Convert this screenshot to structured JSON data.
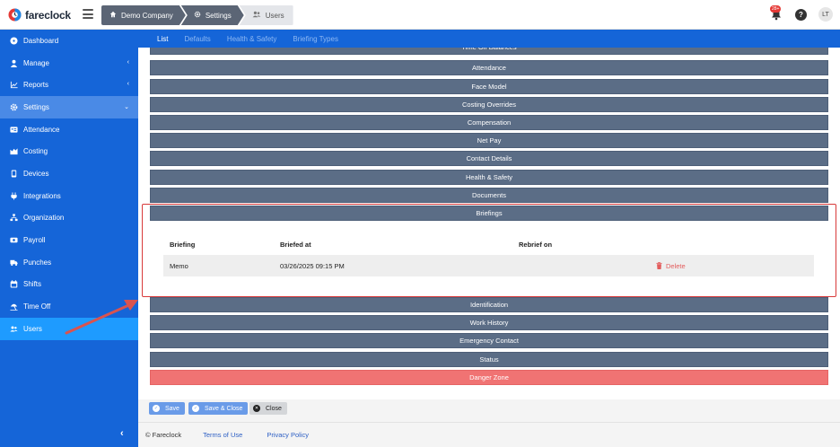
{
  "brand": {
    "name": "fareclock"
  },
  "breadcrumbs": [
    {
      "label": "Demo Company",
      "icon": "home-icon"
    },
    {
      "label": "Settings",
      "icon": "gear-icon"
    },
    {
      "label": "Users",
      "icon": "users-icon"
    }
  ],
  "topbar": {
    "notification_count": "28+",
    "help": "?",
    "avatar_initials": "LT"
  },
  "sidebar": {
    "items": [
      {
        "label": "Dashboard",
        "icon": "dashboard-icon"
      },
      {
        "label": "Manage",
        "icon": "person-icon",
        "chevron": "‹"
      },
      {
        "label": "Reports",
        "icon": "chart-icon",
        "chevron": "‹"
      },
      {
        "label": "Settings",
        "icon": "gear-icon",
        "chevron": "⌄"
      },
      {
        "label": "Attendance",
        "icon": "attendance-icon"
      },
      {
        "label": "Costing",
        "icon": "costing-icon"
      },
      {
        "label": "Devices",
        "icon": "device-icon"
      },
      {
        "label": "Integrations",
        "icon": "plug-icon"
      },
      {
        "label": "Organization",
        "icon": "org-icon"
      },
      {
        "label": "Payroll",
        "icon": "payroll-icon"
      },
      {
        "label": "Punches",
        "icon": "truck-icon"
      },
      {
        "label": "Shifts",
        "icon": "calendar-icon"
      },
      {
        "label": "Time Off",
        "icon": "umbrella-icon"
      },
      {
        "label": "Users",
        "icon": "users-icon"
      }
    ],
    "collapse": "‹"
  },
  "subtabs": [
    "List",
    "Defaults",
    "Health & Safety",
    "Briefing Types"
  ],
  "sections_top": [
    "Time Off Balances",
    "Attendance",
    "Face Model",
    "Costing Overrides",
    "Compensation",
    "Net Pay",
    "Contact Details",
    "Health & Safety",
    "Documents"
  ],
  "briefings": {
    "title": "Briefings",
    "headers": {
      "briefing": "Briefing",
      "briefed_at": "Briefed at",
      "rebrief_on": "Rebrief on"
    },
    "rows": [
      {
        "briefing": "Memo",
        "briefed_at": "03/26/2025 09:15 PM",
        "rebrief_on": "",
        "action": "Delete"
      }
    ]
  },
  "sections_bottom": [
    "Identification",
    "Work History",
    "Emergency Contact",
    "Status"
  ],
  "danger_zone": "Danger Zone",
  "actions": {
    "save": "Save",
    "save_close": "Save & Close",
    "close": "Close"
  },
  "footer": {
    "copyright": "© Fareclock",
    "terms": "Terms of Use",
    "privacy": "Privacy Policy"
  },
  "colors": {
    "sidebar": "#1565d8",
    "section_bar": "#5b6d86",
    "danger": "#f07373",
    "highlight": "#d83a3a"
  }
}
